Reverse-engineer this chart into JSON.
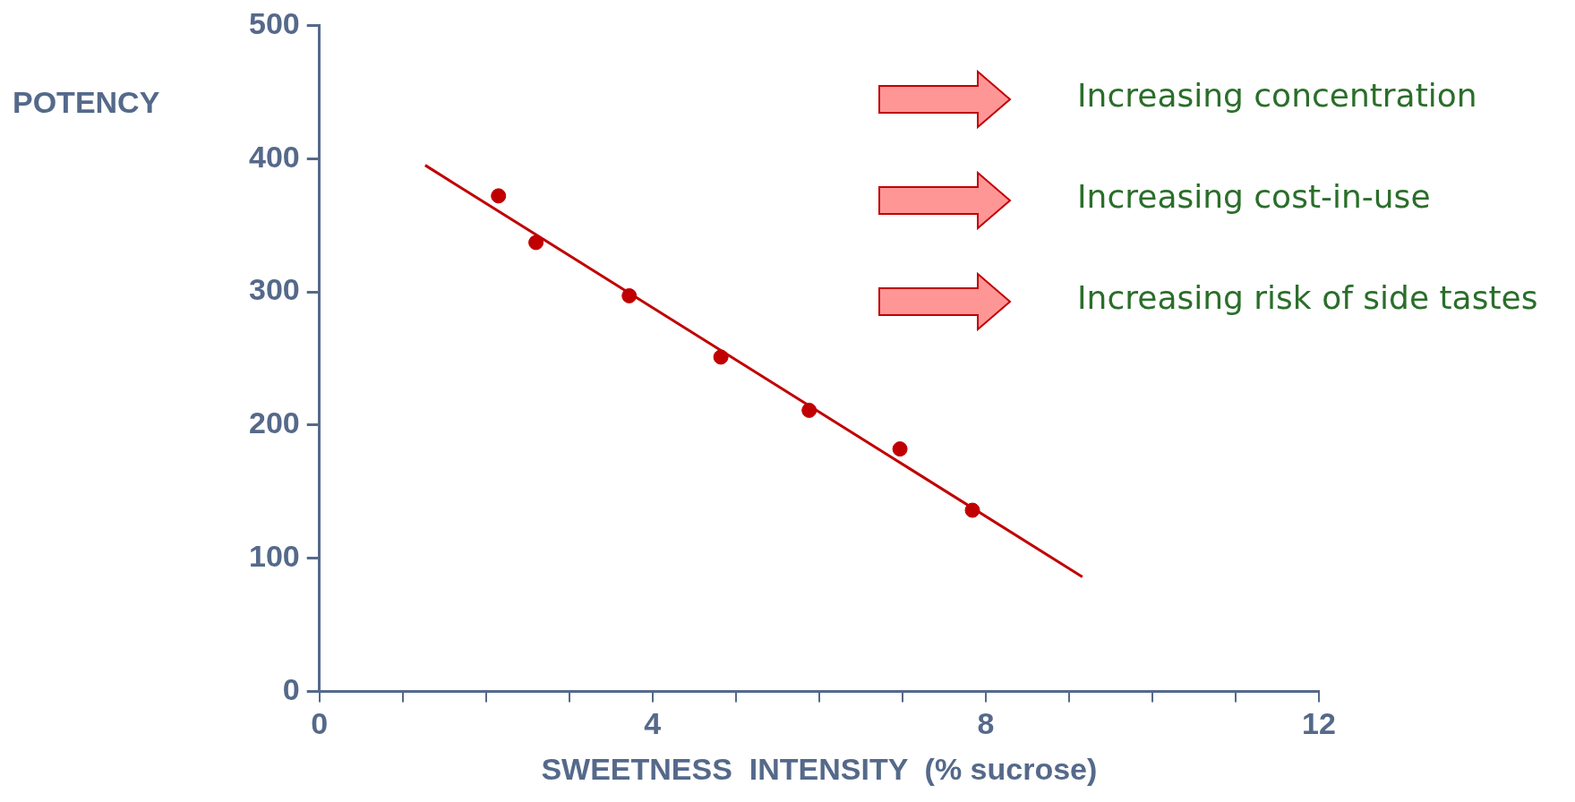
{
  "chart_data": {
    "type": "scatter",
    "xlabel": "SWEETNESS  INTENSITY  (% sucrose)",
    "ylabel": "POTENCY",
    "xlim": [
      0,
      12
    ],
    "xticks": [
      0,
      {
        "value": 1,
        "label": null
      },
      {
        "value": 2,
        "label": null
      },
      {
        "value": 3,
        "label": null
      },
      4,
      {
        "value": 5,
        "label": null
      },
      {
        "value": 6,
        "label": null
      },
      {
        "value": 7,
        "label": null
      },
      8,
      {
        "value": 9,
        "label": null
      },
      {
        "value": 10,
        "label": null
      },
      {
        "value": 11,
        "label": null
      },
      12
    ],
    "ylim": [
      0,
      500
    ],
    "yticks": [
      0,
      100,
      200,
      300,
      400,
      500
    ],
    "grid": false,
    "legend": false,
    "annotations": [
      "Increasing concentration",
      "Increasing cost-in-use",
      "Increasing risk of side tastes"
    ],
    "series": [
      {
        "type": "scatter",
        "marker": "circle",
        "color": "#c00000",
        "x": [
          2.15,
          2.6,
          3.72,
          4.82,
          5.88,
          6.97,
          7.84
        ],
        "values": [
          372,
          337,
          297,
          251,
          211,
          182,
          136
        ]
      },
      {
        "type": "line",
        "marker": "none",
        "color": "#c00000",
        "x": [
          1.27,
          9.16
        ],
        "values": [
          395,
          86
        ]
      }
    ]
  }
}
